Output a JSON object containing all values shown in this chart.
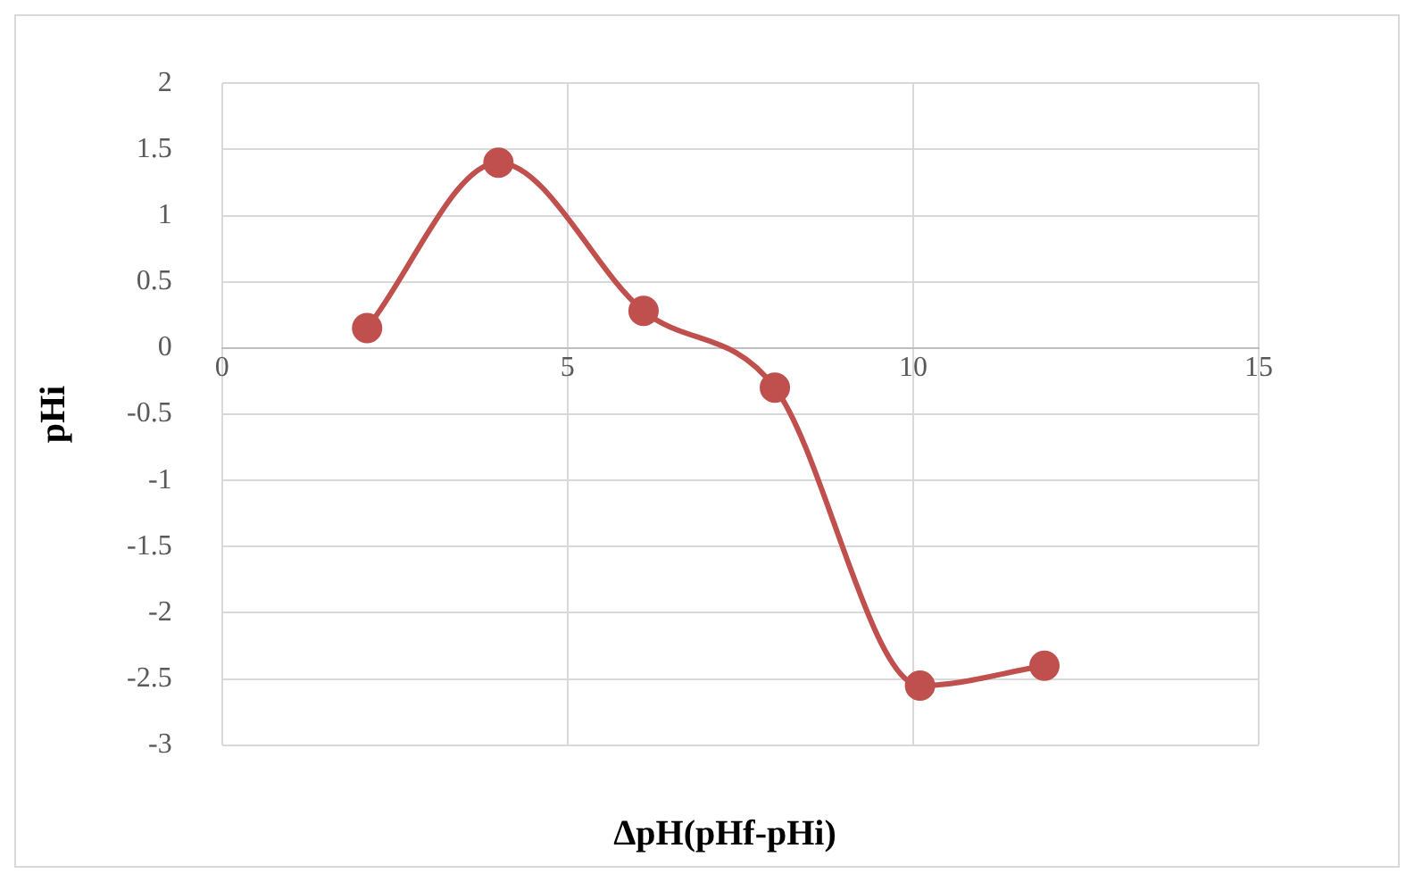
{
  "chart_data": {
    "type": "line",
    "xlabel": "ΔpH(pHf-pHi)",
    "ylabel": "pHi",
    "x": [
      2.1,
      4.0,
      6.1,
      8.0,
      10.1,
      11.9
    ],
    "series": [
      {
        "color": "#c0504d",
        "values": [
          0.15,
          1.4,
          0.28,
          -0.3,
          -2.55,
          -2.4
        ]
      }
    ],
    "xlim": [
      0,
      15
    ],
    "xticks": [
      0,
      5,
      10,
      15
    ],
    "ylim": [
      -3,
      2
    ],
    "yticks": [
      -3,
      -2.5,
      -2,
      -1.5,
      -1,
      -0.5,
      0,
      0.5,
      1,
      1.5,
      2
    ],
    "grid": true,
    "legend": false,
    "marker": "circle",
    "line_style": "solid"
  }
}
